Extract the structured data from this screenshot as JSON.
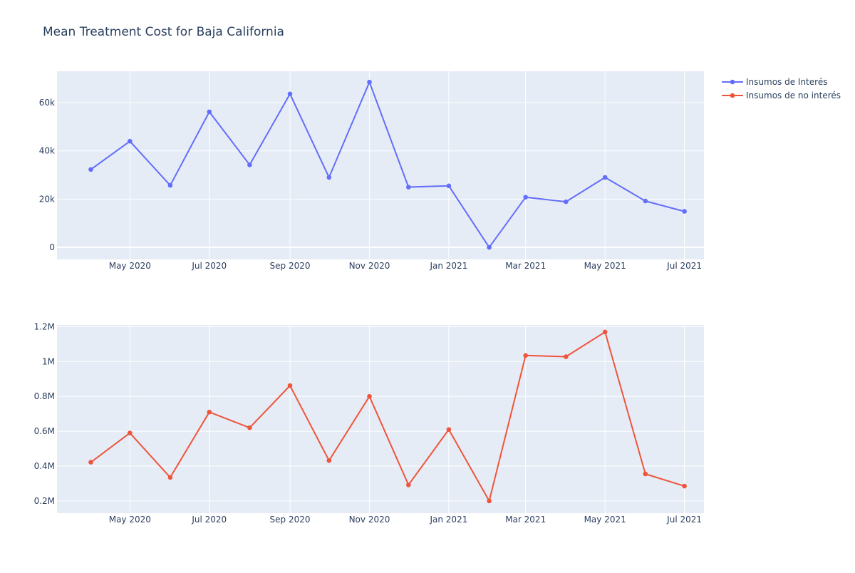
{
  "chart_data": {
    "type": "line",
    "title": "Mean Treatment Cost for Baja California",
    "x": [
      "2020-04-01",
      "2020-05-01",
      "2020-06-01",
      "2020-07-01",
      "2020-08-01",
      "2020-09-01",
      "2020-10-01",
      "2020-11-01",
      "2020-12-01",
      "2021-01-01",
      "2021-02-01",
      "2021-03-01",
      "2021-04-01",
      "2021-05-01",
      "2021-06-01",
      "2021-07-01"
    ],
    "x_tick_labels": [
      "May 2020",
      "Jul 2020",
      "Sep 2020",
      "Nov 2020",
      "Jan 2021",
      "Mar 2021",
      "May 2021",
      "Jul 2021"
    ],
    "x_ticks": [
      "2020-05-01",
      "2020-07-01",
      "2020-09-01",
      "2020-11-01",
      "2021-01-01",
      "2021-03-01",
      "2021-05-01",
      "2021-07-01"
    ],
    "x_range": [
      "2020-03-06",
      "2021-07-16"
    ],
    "legend_position": "top-right",
    "grid": true,
    "series": [
      {
        "name": "Insumos de Interés",
        "color": "#636efa",
        "values": [
          32300,
          44000,
          25700,
          56200,
          34200,
          63600,
          29000,
          68500,
          25000,
          25500,
          0,
          20800,
          18900,
          29000,
          19200,
          14900
        ]
      },
      {
        "name": "Insumos de no interés",
        "color": "#ef553b",
        "values": [
          422000,
          590000,
          335000,
          710000,
          620000,
          862000,
          432000,
          800000,
          292000,
          610000,
          200000,
          1035000,
          1028000,
          1170000,
          355000,
          285000
        ]
      }
    ],
    "subplots": [
      {
        "series_index": 0,
        "ylim": [
          -5000,
          73000
        ],
        "y_ticks": [
          0,
          20000,
          40000,
          60000
        ],
        "y_tick_labels": [
          "0",
          "20k",
          "40k",
          "60k"
        ]
      },
      {
        "series_index": 1,
        "ylim": [
          130000,
          1210000
        ],
        "y_ticks": [
          200000,
          400000,
          600000,
          800000,
          1000000,
          1200000
        ],
        "y_tick_labels": [
          "0.2M",
          "0.4M",
          "0.6M",
          "0.8M",
          "1M",
          "1.2M"
        ]
      }
    ]
  }
}
